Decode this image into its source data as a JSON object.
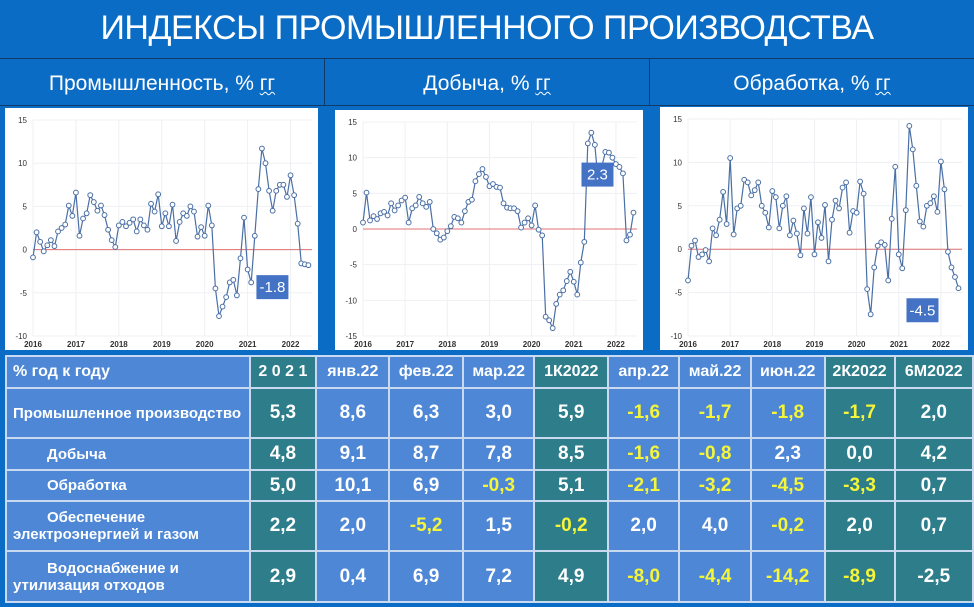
{
  "title": "ИНДЕКСЫ ПРОМЫШЛЕННОГО ПРОИЗВОДСТВА",
  "panels": [
    {
      "title": "Промышленность, % ",
      "unit": "гг"
    },
    {
      "title": "Добыча, % ",
      "unit": "гг"
    },
    {
      "title": "Обработка, % ",
      "unit": "гг"
    }
  ],
  "colors": {
    "line": "#4a6fa5",
    "zero": "#e07070",
    "label_bg": "#4472c4",
    "yellow": "#f5f53a"
  },
  "chart_data": [
    {
      "type": "line",
      "title": "Промышленность, % гг",
      "x_start": "2016-01",
      "x_ticks": [
        "2016",
        "2017",
        "2018",
        "2019",
        "2020",
        "2021",
        "2022"
      ],
      "ylim": [
        -10,
        15
      ],
      "yticks": [
        -10,
        -5,
        0,
        5,
        10,
        15
      ],
      "last_label": "-1.8",
      "grid": true,
      "values": [
        -0.9,
        2.0,
        0.9,
        -0.2,
        0.5,
        1.1,
        0.4,
        2.1,
        2.5,
        2.9,
        5.1,
        3.9,
        6.6,
        1.6,
        3.6,
        4.2,
        6.3,
        5.5,
        4.5,
        5.1,
        4.0,
        2.3,
        1.1,
        0.3,
        2.8,
        3.2,
        2.7,
        3.1,
        3.5,
        2.1,
        3.5,
        2.8,
        2.3,
        5.3,
        4.4,
        6.4,
        2.7,
        4.2,
        2.7,
        5.2,
        1.0,
        3.2,
        4.2,
        3.9,
        5.0,
        4.4,
        1.5,
        2.6,
        1.6,
        5.1,
        2.8,
        -4.5,
        -7.7,
        -6.6,
        -5.5,
        -3.8,
        -3.5,
        -5.3,
        -1.0,
        3.7,
        -2.3,
        -3.8,
        1.6,
        7.0,
        11.7,
        10.0,
        6.8,
        4.5,
        6.8,
        7.5,
        7.5,
        6.1,
        8.6,
        6.3,
        3.0,
        -1.6,
        -1.7,
        -1.8
      ]
    },
    {
      "type": "line",
      "title": "Добыча, % гг",
      "x_start": "2016-01",
      "x_ticks": [
        "2016",
        "2017",
        "2018",
        "2019",
        "2020",
        "2021",
        "2022"
      ],
      "ylim": [
        -15,
        15
      ],
      "yticks": [
        -15,
        -10,
        -5,
        0,
        5,
        10,
        15
      ],
      "last_label": "2.3",
      "grid": true,
      "values": [
        0.9,
        5.1,
        1.2,
        1.8,
        1.4,
        2.2,
        2.4,
        1.9,
        3.6,
        2.6,
        3.3,
        4.0,
        4.4,
        0.9,
        2.9,
        3.3,
        4.5,
        3.6,
        3.1,
        3.8,
        0.0,
        -0.6,
        -1.5,
        -1.2,
        -0.3,
        0.4,
        1.7,
        1.5,
        0.9,
        2.5,
        3.8,
        4.1,
        6.7,
        7.7,
        8.4,
        7.3,
        6.0,
        6.3,
        5.9,
        5.8,
        3.6,
        3.0,
        2.9,
        2.9,
        2.5,
        0.2,
        0.9,
        1.5,
        0.5,
        3.3,
        -0.1,
        -0.9,
        -12.3,
        -12.8,
        -13.9,
        -10.5,
        -9.2,
        -8.6,
        -7.3,
        -6.0,
        -7.4,
        -9.2,
        -4.7,
        -1.8,
        12.0,
        13.5,
        11.8,
        6.4,
        8.8,
        10.8,
        10.7,
        10.0,
        9.1,
        8.7,
        7.8,
        -1.6,
        -0.8,
        2.3
      ]
    },
    {
      "type": "line",
      "title": "Обработка, % гг",
      "x_start": "2016-01",
      "x_ticks": [
        "2016",
        "2017",
        "2018",
        "2019",
        "2020",
        "2021",
        "2022"
      ],
      "ylim": [
        -10,
        15
      ],
      "yticks": [
        -10,
        -5,
        0,
        5,
        10,
        15
      ],
      "last_label": "-4.5",
      "grid": true,
      "values": [
        -3.6,
        0.4,
        1.0,
        -0.9,
        -0.6,
        -0.1,
        -1.4,
        2.4,
        1.6,
        3.4,
        6.6,
        2.9,
        10.5,
        1.7,
        4.7,
        5.0,
        8.0,
        7.7,
        6.2,
        6.8,
        7.7,
        5.0,
        4.2,
        2.5,
        6.7,
        6.0,
        2.4,
        5.0,
        6.1,
        1.6,
        3.3,
        1.8,
        -0.7,
        4.7,
        1.8,
        6.0,
        -0.6,
        3.1,
        1.3,
        5.1,
        -1.4,
        3.4,
        5.6,
        4.7,
        7.1,
        7.7,
        1.9,
        4.4,
        4.2,
        7.8,
        6.4,
        -4.6,
        -7.5,
        -2.1,
        0.4,
        0.8,
        0.5,
        -3.6,
        3.5,
        9.5,
        -0.6,
        -2.2,
        4.5,
        14.2,
        11.5,
        7.3,
        3.2,
        2.6,
        5.0,
        5.3,
        6.1,
        4.3,
        10.1,
        6.9,
        -0.3,
        -2.1,
        -3.2,
        -4.5
      ]
    }
  ],
  "table": {
    "corner": "% год к году",
    "columns": [
      "2 0 2 1",
      "янв.22",
      "фев.22",
      "мар.22",
      "1К2022",
      "апр.22",
      "май.22",
      "июн.22",
      "2К2022",
      "6М2022"
    ],
    "rows": [
      {
        "label": "Промышленное производство",
        "values": [
          "5,3",
          "8,6",
          "6,3",
          "3,0",
          "5,9",
          "-1,6",
          "-1,7",
          "-1,8",
          "-1,7",
          "2,0"
        ]
      },
      {
        "label": "Добыча",
        "values": [
          "4,8",
          "9,1",
          "8,7",
          "7,8",
          "8,5",
          "-1,6",
          "-0,8",
          "2,3",
          "0,0",
          "4,2"
        ]
      },
      {
        "label": "Обработка",
        "values": [
          "5,0",
          "10,1",
          "6,9",
          "-0,3",
          "5,1",
          "-2,1",
          "-3,2",
          "-4,5",
          "-3,3",
          "0,7"
        ]
      },
      {
        "label": "Обеспечение",
        "label2": "электроэнергией и газом",
        "values": [
          "2,2",
          "2,0",
          "-5,2",
          "1,5",
          "-0,2",
          "2,0",
          "4,0",
          "-0,2",
          "2,0",
          "0,7"
        ]
      },
      {
        "label": "Водоснабжение и",
        "label2": "утилизация отходов",
        "values": [
          "2,9",
          "0,4",
          "6,9",
          "7,2",
          "4,9",
          "-8,0",
          "-4,4",
          "-14,2",
          "-8,9",
          "-2,5"
        ]
      }
    ]
  }
}
